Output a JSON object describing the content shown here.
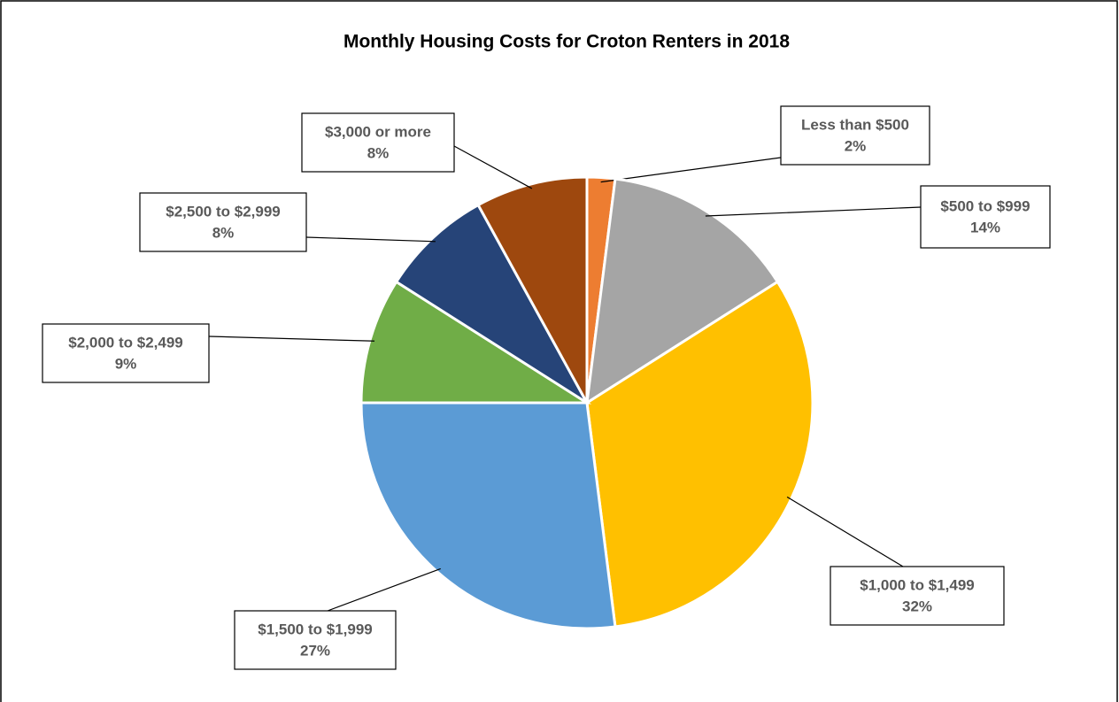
{
  "chart_data": {
    "type": "pie",
    "title": "Monthly Housing Costs for Croton Renters in 2018",
    "categories": [
      "Less than $500",
      "$500 to $999",
      "$1,000 to $1,499",
      "$1,500 to $1,999",
      "$2,000 to $2,499",
      "$2,500 to $2,999",
      "$3,000 or more"
    ],
    "values": [
      2,
      14,
      32,
      27,
      9,
      8,
      8
    ],
    "value_labels": [
      "2%",
      "14%",
      "32%",
      "27%",
      "9%",
      "8%",
      "8%"
    ],
    "colors": [
      "#ED7D31",
      "#A5A5A5",
      "#FFC000",
      "#5B9BD5",
      "#70AD47",
      "#264478",
      "#9E480E"
    ]
  }
}
